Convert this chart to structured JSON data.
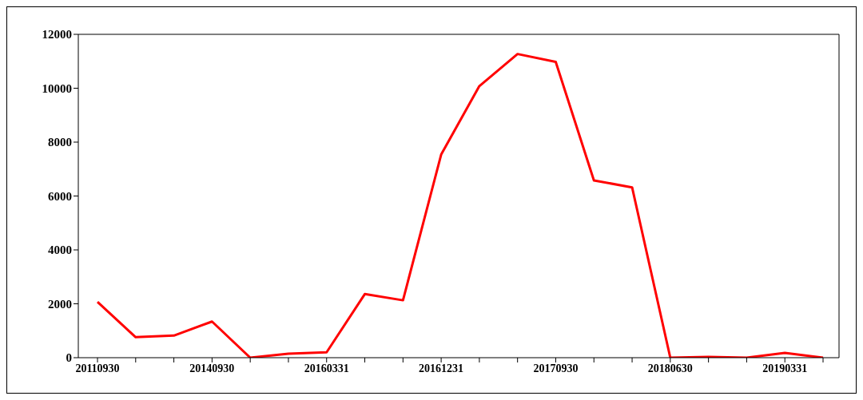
{
  "chart_data": {
    "type": "line",
    "categories": [
      "20110930",
      null,
      null,
      "20140930",
      null,
      null,
      "20160331",
      null,
      null,
      "20161231",
      null,
      null,
      "20170930",
      null,
      null,
      "20180630",
      null,
      null,
      "20190331",
      null
    ],
    "series": [
      {
        "color": "#ff0000",
        "values": [
          2070,
          760,
          820,
          1340,
          0,
          150,
          200,
          2360,
          2130,
          7540,
          10080,
          11270,
          10980,
          6580,
          6320,
          0,
          30,
          0,
          180,
          0
        ]
      }
    ],
    "ylim": [
      0,
      12000
    ],
    "yticks": [
      0,
      2000,
      4000,
      6000,
      8000,
      10000,
      12000
    ],
    "grid": false,
    "marker": "none",
    "line_style": "solid"
  }
}
